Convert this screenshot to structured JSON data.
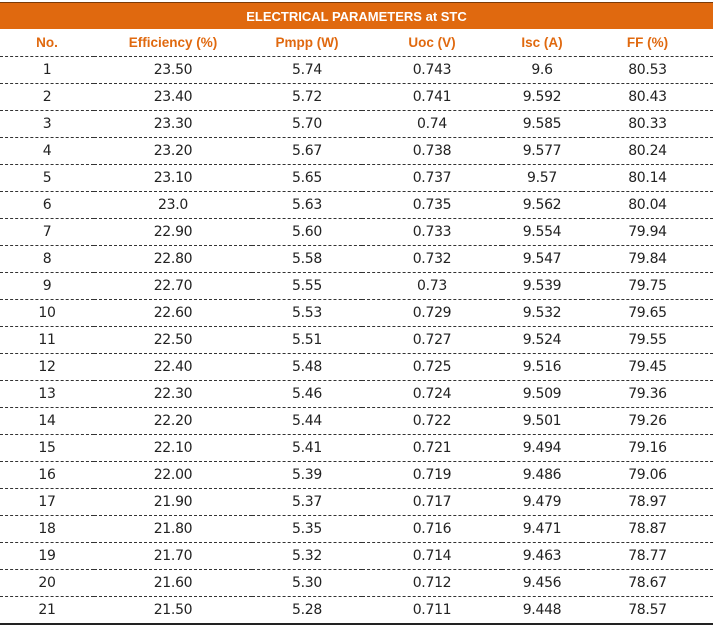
{
  "title": "ELECTRICAL PARAMETERS at STC",
  "colors": {
    "header_band": "#E0690F",
    "header_text": "#E0690F"
  },
  "columns": [
    "No.",
    "Efficiency (%)",
    "Pmpp (W)",
    "Uoc (V)",
    "Isc (A)",
    "FF (%)"
  ],
  "rows": [
    [
      "1",
      "23.50",
      "5.74",
      "0.743",
      "9.6",
      "80.53"
    ],
    [
      "2",
      "23.40",
      "5.72",
      "0.741",
      "9.592",
      "80.43"
    ],
    [
      "3",
      "23.30",
      "5.70",
      "0.74",
      "9.585",
      "80.33"
    ],
    [
      "4",
      "23.20",
      "5.67",
      "0.738",
      "9.577",
      "80.24"
    ],
    [
      "5",
      "23.10",
      "5.65",
      "0.737",
      "9.57",
      "80.14"
    ],
    [
      "6",
      "23.0",
      "5.63",
      "0.735",
      "9.562",
      "80.04"
    ],
    [
      "7",
      "22.90",
      "5.60",
      "0.733",
      "9.554",
      "79.94"
    ],
    [
      "8",
      "22.80",
      "5.58",
      "0.732",
      "9.547",
      "79.84"
    ],
    [
      "9",
      "22.70",
      "5.55",
      "0.73",
      "9.539",
      "79.75"
    ],
    [
      "10",
      "22.60",
      "5.53",
      "0.729",
      "9.532",
      "79.65"
    ],
    [
      "11",
      "22.50",
      "5.51",
      "0.727",
      "9.524",
      "79.55"
    ],
    [
      "12",
      "22.40",
      "5.48",
      "0.725",
      "9.516",
      "79.45"
    ],
    [
      "13",
      "22.30",
      "5.46",
      "0.724",
      "9.509",
      "79.36"
    ],
    [
      "14",
      "22.20",
      "5.44",
      "0.722",
      "9.501",
      "79.26"
    ],
    [
      "15",
      "22.10",
      "5.41",
      "0.721",
      "9.494",
      "79.16"
    ],
    [
      "16",
      "22.00",
      "5.39",
      "0.719",
      "9.486",
      "79.06"
    ],
    [
      "17",
      "21.90",
      "5.37",
      "0.717",
      "9.479",
      "78.97"
    ],
    [
      "18",
      "21.80",
      "5.35",
      "0.716",
      "9.471",
      "78.87"
    ],
    [
      "19",
      "21.70",
      "5.32",
      "0.714",
      "9.463",
      "78.77"
    ],
    [
      "20",
      "21.60",
      "5.30",
      "0.712",
      "9.456",
      "78.67"
    ],
    [
      "21",
      "21.50",
      "5.28",
      "0.711",
      "9.448",
      "78.57"
    ]
  ]
}
